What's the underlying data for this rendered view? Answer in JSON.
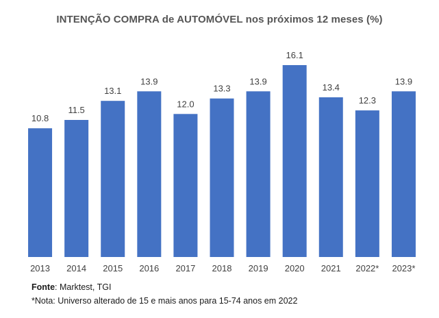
{
  "chart_data": {
    "type": "bar",
    "title": "INTENÇÃO COMPRA de AUTOMÓVEL nos próximos 12 meses (%)",
    "categories": [
      "2013",
      "2014",
      "2015",
      "2016",
      "2017",
      "2018",
      "2019",
      "2020",
      "2021",
      "2022*",
      "2023*"
    ],
    "values": [
      10.8,
      11.5,
      13.1,
      13.9,
      12.0,
      13.3,
      13.9,
      16.1,
      13.4,
      12.3,
      13.9
    ],
    "value_labels": [
      "10.8",
      "11.5",
      "13.1",
      "13.9",
      "12.0",
      "13.3",
      "13.9",
      "16.1",
      "13.4",
      "12.3",
      "13.9"
    ],
    "xlabel": "",
    "ylabel": "",
    "ylim": [
      0,
      16.1
    ],
    "grid": false,
    "bar_color": "#4472c4"
  },
  "footer": {
    "source_label": "Fonte",
    "source_text": ": Marktest, TGI",
    "note": "*Nota: Universo alterado de 15 e mais anos para 15-74 anos em 2022"
  }
}
